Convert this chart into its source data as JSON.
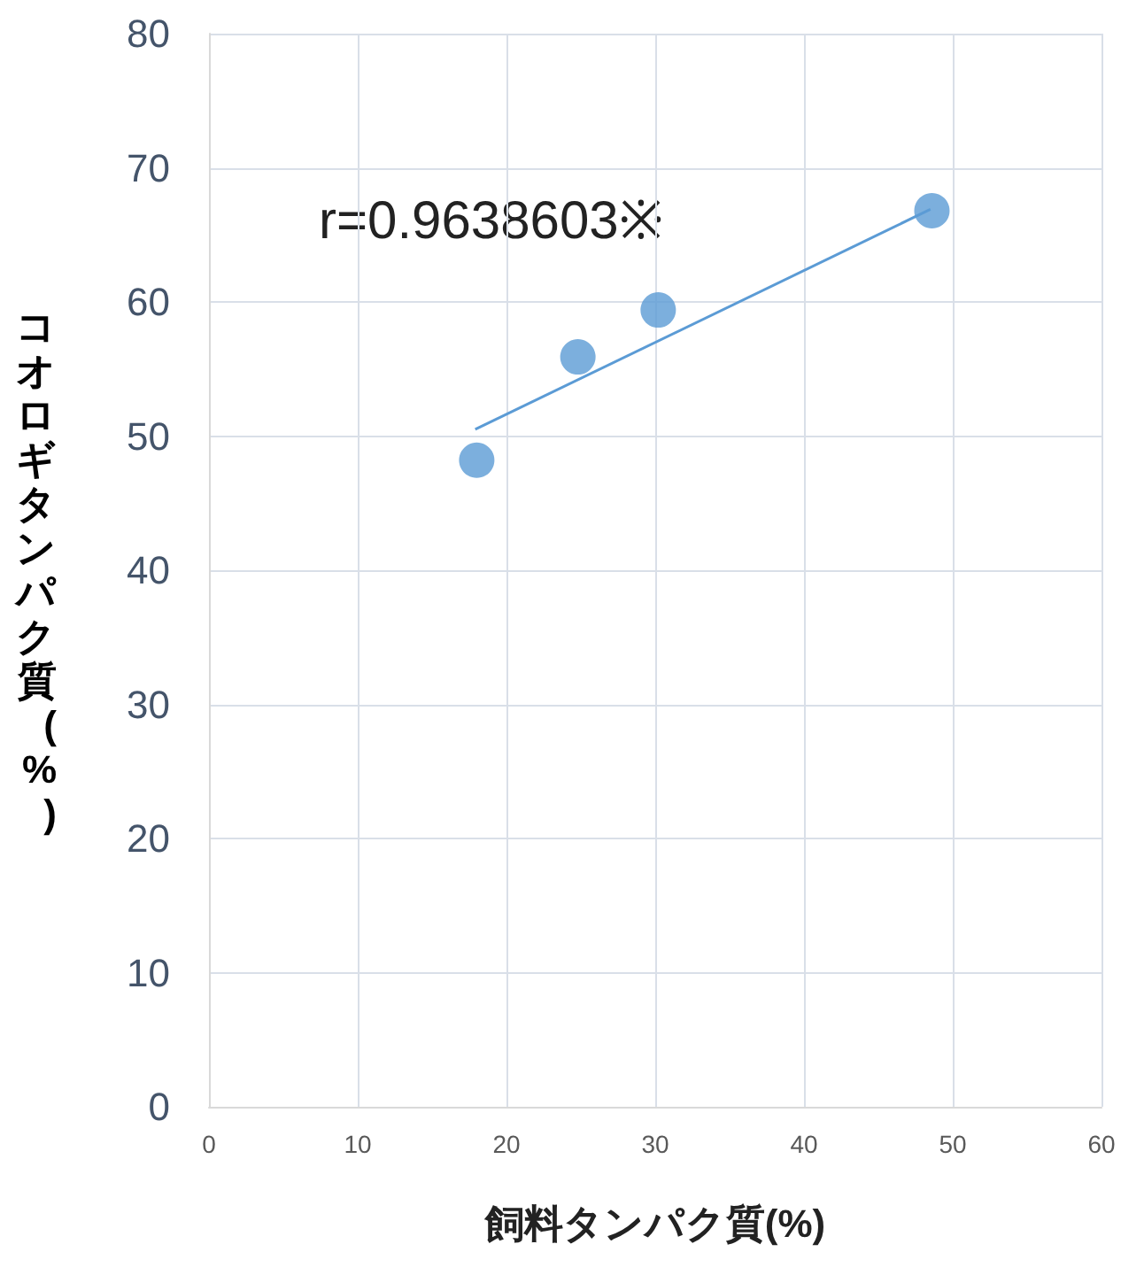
{
  "chart_data": {
    "type": "scatter",
    "xlabel": "飼料タンパク質(%)",
    "ylabel": "コオロギタンパク質(%)",
    "annotations": [
      "r=0.9638603※"
    ],
    "series": [
      {
        "color": "#5b9bd5",
        "marker": "circle",
        "x": [
          18.0,
          24.8,
          30.2,
          48.6
        ],
        "values": [
          48.2,
          55.9,
          59.4,
          66.8
        ]
      },
      {
        "type": "line",
        "marker": "none",
        "color": "#5b9bd5",
        "x": [
          17.9,
          48.5
        ],
        "values": [
          50.5,
          66.9
        ]
      }
    ],
    "xlim": [
      0,
      60
    ],
    "xticks": [
      0,
      10,
      20,
      30,
      40,
      50,
      60
    ],
    "ylim": [
      0,
      80
    ],
    "yticks": [
      0,
      10,
      20,
      30,
      40,
      50,
      60,
      70,
      80
    ],
    "grid": true
  }
}
